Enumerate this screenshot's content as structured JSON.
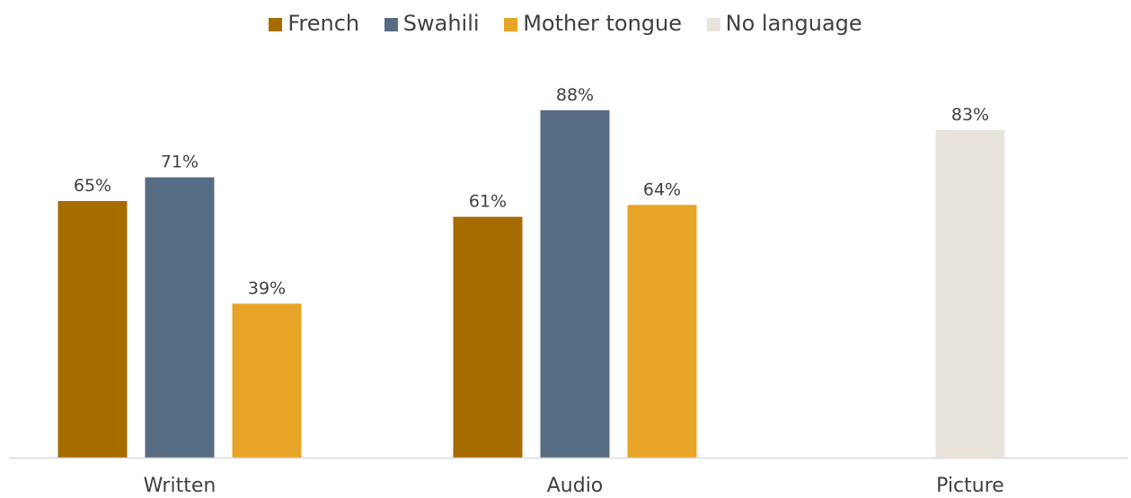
{
  "chart_data": {
    "type": "bar",
    "title": "",
    "xlabel": "",
    "ylabel": "",
    "ylim": [
      0,
      100
    ],
    "grid": false,
    "legend_position": "top",
    "categories": [
      "Written",
      "Audio",
      "Picture"
    ],
    "series": [
      {
        "name": "French",
        "color": "#A66C00",
        "values": [
          65,
          61,
          null
        ]
      },
      {
        "name": "Swahili",
        "color": "#566C82",
        "values": [
          71,
          88,
          null
        ]
      },
      {
        "name": "Mother tongue",
        "color": "#E8A427",
        "values": [
          39,
          64,
          null
        ]
      },
      {
        "name": "No language",
        "color": "#E8E4DC",
        "values": [
          null,
          null,
          83
        ]
      }
    ],
    "value_suffix": "%"
  }
}
